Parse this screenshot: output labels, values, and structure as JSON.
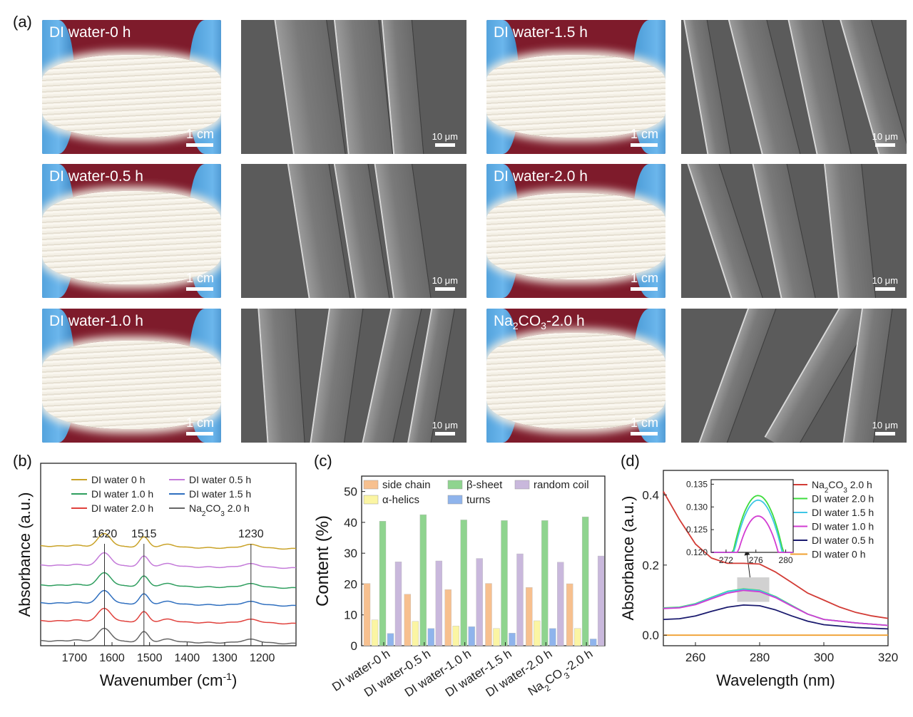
{
  "panel_labels": {
    "a": "(a)",
    "b": "(b)",
    "c": "(c)",
    "d": "(d)"
  },
  "photos": [
    {
      "label": "DI water-0 h",
      "scale": "1 cm"
    },
    {
      "label": "DI water-1.5 h",
      "scale": "1 cm"
    },
    {
      "label": "DI water-0.5 h",
      "scale": "1 cm"
    },
    {
      "label": "DI water-2.0 h",
      "scale": "1 cm"
    },
    {
      "label": "DI water-1.0 h",
      "scale": "1 cm"
    },
    {
      "label_main": "Na",
      "label_sub1": "2",
      "label_mid": "CO",
      "label_sub2": "3",
      "label_tail": "-2.0 h",
      "scale": "1 cm"
    }
  ],
  "sem_scale": "10 μm",
  "chart_data": [
    {
      "panel": "b",
      "type": "line",
      "xlabel": "Wavenumber (cm-1)",
      "ylabel": "Absorbance (a.u.)",
      "x_ticks": [
        1700,
        1600,
        1500,
        1400,
        1300,
        1200
      ],
      "xlim": [
        1790,
        1110
      ],
      "peak_labels": [
        1620,
        1515,
        1230
      ],
      "series": [
        {
          "name": "DI water    0 h",
          "color": "#c9a227"
        },
        {
          "name": "DI water 0.5 h",
          "color": "#c47ad9"
        },
        {
          "name": "DI water 1.0 h",
          "color": "#2e9e5e"
        },
        {
          "name": "DI water 1.5 h",
          "color": "#2f6fbf"
        },
        {
          "name": "DI water 2.0 h",
          "color": "#e0413c"
        },
        {
          "name": "Na2CO3 2.0 h",
          "color": "#666666"
        }
      ]
    },
    {
      "panel": "c",
      "type": "bar",
      "ylabel": "Content (%)",
      "ylim": [
        0,
        55
      ],
      "y_ticks": [
        0,
        10,
        20,
        30,
        40,
        50
      ],
      "categories": [
        "DI water-0 h",
        "DI water-0.5 h",
        "DI water-1.0 h",
        "DI water-1.5 h",
        "DI water-2.0 h",
        "Na2CO3-2.0 h"
      ],
      "series": [
        {
          "name": "side chain",
          "color": "#f7c08f",
          "values": [
            20.2,
            16.7,
            18.2,
            20.2,
            18.9,
            20.1
          ]
        },
        {
          "name": "β-sheet",
          "color": "#8fd48f",
          "values": [
            40.4,
            42.5,
            40.8,
            40.6,
            40.6,
            41.8
          ]
        },
        {
          "name": "random coil",
          "color": "#c9b8dc",
          "values": [
            27.2,
            27.5,
            28.3,
            29.8,
            27.1,
            29.1
          ]
        },
        {
          "name": "α-helics",
          "color": "#fbf5a3",
          "values": [
            8.4,
            7.9,
            6.4,
            5.6,
            8.1,
            5.6
          ]
        },
        {
          "name": "turns",
          "color": "#8fb4ec",
          "values": [
            4.0,
            5.6,
            6.2,
            4.1,
            5.6,
            2.2
          ]
        }
      ]
    },
    {
      "panel": "d",
      "type": "line",
      "xlabel": "Wavelength (nm)",
      "ylabel": "Absorbance (a.u.)",
      "xlim": [
        250,
        320
      ],
      "ylim": [
        -0.03,
        0.47
      ],
      "x_ticks": [
        260,
        280,
        300,
        320
      ],
      "y_ticks": [
        0.0,
        0.2,
        0.4
      ],
      "series": [
        {
          "name": "Na2CO3  2.0 h",
          "color": "#d23b35",
          "x": [
            250,
            255,
            260,
            265,
            270,
            275,
            280,
            285,
            290,
            295,
            300,
            305,
            310,
            315,
            320
          ],
          "y": [
            0.41,
            0.33,
            0.26,
            0.22,
            0.205,
            0.205,
            0.203,
            0.18,
            0.15,
            0.12,
            0.1,
            0.08,
            0.065,
            0.055,
            0.048
          ]
        },
        {
          "name": "DI water 2.0 h",
          "color": "#3ddc3d",
          "x": [
            250,
            255,
            260,
            265,
            270,
            275,
            280,
            285,
            290,
            295,
            300,
            310,
            320
          ],
          "y": [
            0.078,
            0.08,
            0.09,
            0.108,
            0.125,
            0.132,
            0.128,
            0.11,
            0.085,
            0.06,
            0.045,
            0.035,
            0.028
          ]
        },
        {
          "name": "DI water 1.5 h",
          "color": "#3fc6e6",
          "x": [
            250,
            255,
            260,
            265,
            270,
            275,
            280,
            285,
            290,
            295,
            300,
            310,
            320
          ],
          "y": [
            0.077,
            0.079,
            0.089,
            0.107,
            0.124,
            0.131,
            0.127,
            0.109,
            0.084,
            0.06,
            0.045,
            0.035,
            0.028
          ]
        },
        {
          "name": "DI water 1.0 h",
          "color": "#d23cd2",
          "x": [
            250,
            255,
            260,
            265,
            270,
            275,
            280,
            285,
            290,
            295,
            300,
            310,
            320
          ],
          "y": [
            0.076,
            0.078,
            0.087,
            0.104,
            0.12,
            0.128,
            0.124,
            0.107,
            0.083,
            0.06,
            0.045,
            0.035,
            0.028
          ]
        },
        {
          "name": "DI water 0.5 h",
          "color": "#1a1a6e",
          "x": [
            250,
            255,
            260,
            265,
            270,
            275,
            280,
            285,
            290,
            295,
            300,
            310,
            320
          ],
          "y": [
            0.045,
            0.047,
            0.055,
            0.068,
            0.08,
            0.086,
            0.084,
            0.072,
            0.055,
            0.04,
            0.03,
            0.022,
            0.018
          ]
        },
        {
          "name": "DI water    0 h",
          "color": "#f0a030",
          "x": [
            250,
            320
          ],
          "y": [
            0.0,
            0.0
          ]
        }
      ],
      "inset": {
        "xlim": [
          270,
          281
        ],
        "ylim": [
          0.12,
          0.136
        ],
        "x_ticks": [
          272,
          276,
          280
        ],
        "y_ticks": [
          0.12,
          0.125,
          0.13,
          0.135
        ],
        "peaks": [
          {
            "name": "DI water 2.0 h",
            "peak": 0.1325
          },
          {
            "name": "DI water 1.5 h",
            "peak": 0.1315
          },
          {
            "name": "DI water 1.0 h",
            "peak": 0.128
          }
        ]
      }
    }
  ]
}
